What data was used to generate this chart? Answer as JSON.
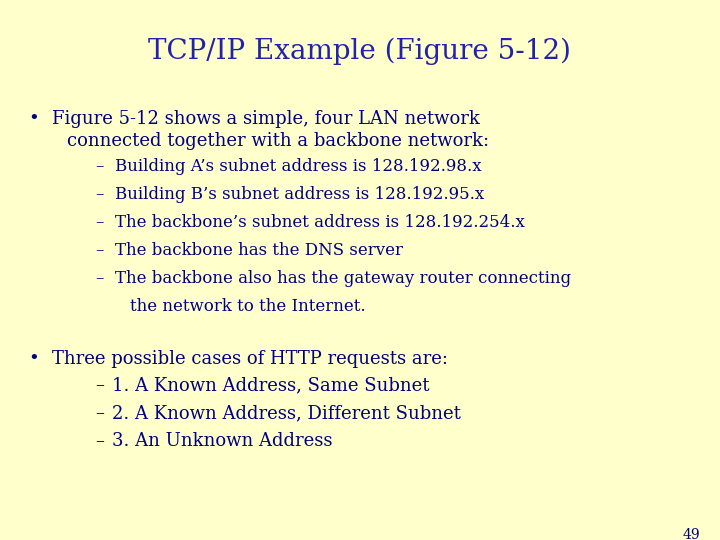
{
  "title": "TCP/IP Example (Figure 5-12)",
  "title_color": "#2222aa",
  "title_fontsize": 20,
  "background_color": "#ffffcc",
  "text_color": "#000080",
  "body_fontsize": 13,
  "sub_fontsize": 12,
  "bullet1_line1": "Figure 5-12 shows a simple, four LAN network",
  "bullet1_line2": "connected together with a backbone network:",
  "sub_items": [
    "Building A’s subnet address is 128.192.98.x",
    "Building B’s subnet address is 128.192.95.x",
    "The backbone’s subnet address is 128.192.254.x",
    "The backbone has the DNS server",
    "The backbone also has the gateway router connecting",
    "the network to the Internet."
  ],
  "sub_items_dash": [
    true,
    true,
    true,
    true,
    true,
    false
  ],
  "bullet2": "Three possible cases of HTTP requests are:",
  "sub_items2": [
    "1. A Known Address, Same Subnet",
    "2. A Known Address, Different Subnet",
    "3. An Unknown Address"
  ],
  "page_number": "49"
}
